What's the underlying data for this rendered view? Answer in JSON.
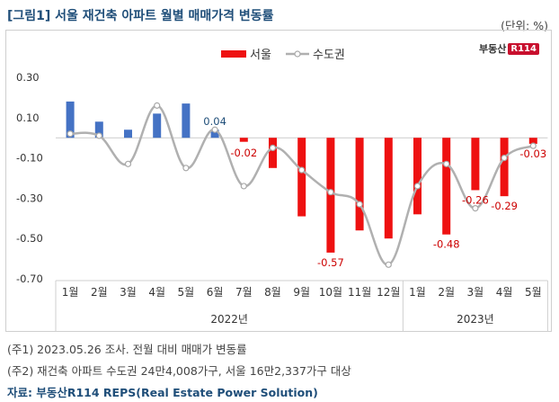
{
  "title": "[그림1] 서울 재건축 아파트 월별 매매가격 변동률",
  "unit": "(단위: %)",
  "logo": {
    "text": "부동산",
    "badge": "R114"
  },
  "notes": [
    "(주1) 2023.05.26 조사. 전월 대비 매매가 변동률",
    "(주2) 재건축 아파트 수도권 24만4,008가구, 서울 16만2,337가구 대상"
  ],
  "source": "자료: 부동산R114 REPS(Real Estate Power Solution)",
  "colors": {
    "seoul_pos": "#4472c4",
    "seoul_neg": "#ee1111",
    "metro_line": "#b0b0b0",
    "title": "#1f4e79"
  },
  "chart_data": {
    "type": "bar",
    "categories": [
      "1월",
      "2월",
      "3월",
      "4월",
      "5월",
      "6월",
      "7월",
      "8월",
      "9월",
      "10월",
      "11월",
      "12월",
      "1월",
      "2월",
      "3월",
      "4월",
      "5월"
    ],
    "year_groups": [
      {
        "label": "2022년",
        "start": 0,
        "end": 11
      },
      {
        "label": "2023년",
        "start": 12,
        "end": 16
      }
    ],
    "yticks": [
      "0.30",
      "0.10",
      "-0.10",
      "-0.30",
      "-0.50",
      "-0.70"
    ],
    "ytick_values": [
      0.3,
      0.1,
      -0.1,
      -0.3,
      -0.5,
      -0.7
    ],
    "ylim": [
      -0.7,
      0.3
    ],
    "legend": {
      "position": "top-center"
    },
    "series": [
      {
        "name": "서울",
        "kind": "bar",
        "values": [
          0.18,
          0.08,
          0.04,
          0.12,
          0.17,
          0.04,
          -0.02,
          -0.15,
          -0.39,
          -0.57,
          -0.46,
          -0.5,
          -0.38,
          -0.48,
          -0.26,
          -0.29,
          -0.03
        ]
      },
      {
        "name": "수도권",
        "kind": "line",
        "values": [
          0.02,
          0.01,
          -0.13,
          0.16,
          -0.15,
          0.04,
          -0.24,
          -0.05,
          -0.16,
          -0.27,
          -0.33,
          -0.63,
          -0.24,
          -0.13,
          -0.35,
          -0.1,
          -0.04
        ]
      }
    ],
    "data_labels": [
      {
        "index": 5,
        "text": "0.04"
      },
      {
        "index": 6,
        "text": "-0.02"
      },
      {
        "index": 9,
        "text": "-0.57"
      },
      {
        "index": 13,
        "text": "-0.48"
      },
      {
        "index": 14,
        "text": "-0.26"
      },
      {
        "index": 15,
        "text": "-0.29"
      },
      {
        "index": 16,
        "text": "-0.03"
      }
    ]
  }
}
